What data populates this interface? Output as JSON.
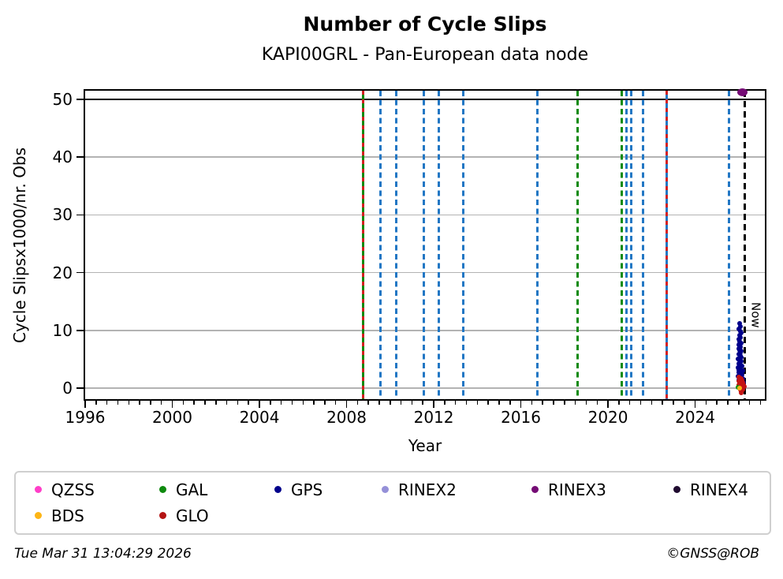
{
  "title": "Number of Cycle Slips",
  "subtitle": "KAPI00GRL - Pan-European data node",
  "footer": {
    "timestamp": "Tue Mar 31 13:04:29 2026",
    "credit": "©GNSS@ROB"
  },
  "legend": {
    "items": [
      {
        "label": "QZSS",
        "color": "#ff3ec8"
      },
      {
        "label": "GAL",
        "color": "#0e8a0e"
      },
      {
        "label": "GPS",
        "color": "#00008b"
      },
      {
        "label": "RINEX2",
        "color": "#9590d8"
      },
      {
        "label": "RINEX3",
        "color": "#750b75"
      },
      {
        "label": "RINEX4",
        "color": "#200b30"
      },
      {
        "label": "BDS",
        "color": "#fdb515"
      },
      {
        "label": "GLO",
        "color": "#b41414"
      }
    ]
  },
  "chart_data": {
    "type": "scatter",
    "title": "Number of Cycle Slips",
    "subtitle": "KAPI00GRL - Pan-European data node",
    "xlabel": "Year",
    "ylabel": "Cycle Slipsx1000/nr. Obs",
    "xlim": [
      1996,
      2027.2
    ],
    "ylim": [
      -1.9,
      51.5
    ],
    "x_major_ticks": [
      1996,
      2000,
      2004,
      2008,
      2012,
      2016,
      2020,
      2024
    ],
    "x_minor_tick_step": 0.5,
    "y_ticks": [
      0,
      10,
      20,
      30,
      40,
      50
    ],
    "y_gridlines": [
      0,
      10,
      20,
      30,
      40
    ],
    "grid": "horizontal",
    "gridline_color": "#b3b3b3",
    "clip_line": {
      "value": 50,
      "color": "#000000"
    },
    "now_line": {
      "year": 2026.27,
      "label": "Now",
      "color": "#000000",
      "style": "dashed"
    },
    "event_lines": [
      {
        "year": 2008.76,
        "color": "#0e8a0e",
        "style": "solid",
        "overlay_color": "#d42020"
      },
      {
        "year": 2009.55,
        "color": "#2277c4",
        "style": "dashed"
      },
      {
        "year": 2010.27,
        "color": "#2277c4",
        "style": "dashed"
      },
      {
        "year": 2011.53,
        "color": "#2277c4",
        "style": "dashed"
      },
      {
        "year": 2012.25,
        "color": "#2277c4",
        "style": "dashed"
      },
      {
        "year": 2013.37,
        "color": "#2277c4",
        "style": "dashed"
      },
      {
        "year": 2016.76,
        "color": "#2277c4",
        "style": "dashed"
      },
      {
        "year": 2018.6,
        "color": "#0e8a0e",
        "style": "dashed"
      },
      {
        "year": 2020.62,
        "color": "#0e8a0e",
        "style": "dashed"
      },
      {
        "year": 2020.83,
        "color": "#2277c4",
        "style": "dashed"
      },
      {
        "year": 2021.05,
        "color": "#2277c4",
        "style": "dashed"
      },
      {
        "year": 2021.62,
        "color": "#2277c4",
        "style": "dashed"
      },
      {
        "year": 2022.7,
        "color": "#2277c4",
        "style": "solid",
        "overlay_color": "#d42020"
      },
      {
        "year": 2025.55,
        "color": "#2277c4",
        "style": "dashed"
      }
    ],
    "series": [
      {
        "name": "GPS",
        "color": "#00008b",
        "marker": [
          6,
          6
        ],
        "points": [
          [
            2026.04,
            11.2
          ],
          [
            2026.08,
            10.7
          ],
          [
            2026.02,
            10.3
          ],
          [
            2026.06,
            9.9
          ],
          [
            2026.1,
            9.6
          ],
          [
            2026.03,
            9.2
          ],
          [
            2026.07,
            8.8
          ],
          [
            2026.0,
            8.5
          ],
          [
            2026.05,
            8.1
          ],
          [
            2026.1,
            7.8
          ],
          [
            2026.02,
            7.5
          ],
          [
            2026.07,
            7.1
          ],
          [
            2025.99,
            6.8
          ],
          [
            2026.04,
            6.5
          ],
          [
            2026.09,
            6.2
          ],
          [
            2026.13,
            6.4
          ],
          [
            2026.01,
            5.9
          ],
          [
            2026.06,
            5.6
          ],
          [
            2026.11,
            5.3
          ],
          [
            2025.98,
            5.1
          ],
          [
            2026.03,
            4.8
          ],
          [
            2026.08,
            4.5
          ],
          [
            2026.13,
            4.7
          ],
          [
            2026.0,
            4.2
          ],
          [
            2026.05,
            3.9
          ],
          [
            2026.1,
            3.7
          ],
          [
            2026.15,
            3.9
          ],
          [
            2025.97,
            3.5
          ],
          [
            2026.02,
            3.2
          ],
          [
            2026.07,
            3.0
          ],
          [
            2026.12,
            3.2
          ],
          [
            2026.17,
            3.0
          ],
          [
            2026.0,
            2.7
          ],
          [
            2026.05,
            2.5
          ],
          [
            2026.1,
            2.3
          ],
          [
            2026.15,
            2.4
          ],
          [
            2025.98,
            2.1
          ],
          [
            2026.03,
            1.9
          ],
          [
            2026.08,
            1.7
          ],
          [
            2026.13,
            1.8
          ],
          [
            2026.18,
            1.6
          ],
          [
            2026.01,
            1.4
          ],
          [
            2026.06,
            1.2
          ],
          [
            2026.11,
            1.0
          ],
          [
            2026.16,
            1.1
          ],
          [
            2026.21,
            0.9
          ],
          [
            2026.04,
            0.8
          ],
          [
            2026.09,
            0.6
          ],
          [
            2026.14,
            0.5
          ],
          [
            2026.19,
            0.4
          ],
          [
            2026.24,
            0.5
          ],
          [
            2026.07,
            0.3
          ],
          [
            2026.12,
            0.2
          ],
          [
            2026.17,
            0.1
          ],
          [
            2026.22,
            0.2
          ]
        ]
      },
      {
        "name": "GLO",
        "color": "#c41414",
        "marker": [
          6,
          6
        ],
        "points": [
          [
            2026.02,
            1.9
          ],
          [
            2026.07,
            1.6
          ],
          [
            2026.12,
            1.7
          ],
          [
            2026.0,
            1.3
          ],
          [
            2026.05,
            1.1
          ],
          [
            2026.1,
            1.2
          ],
          [
            2026.16,
            1.4
          ],
          [
            2026.03,
            0.9
          ],
          [
            2026.08,
            0.7
          ],
          [
            2026.14,
            0.8
          ],
          [
            2026.19,
            1.0
          ],
          [
            2026.01,
            0.5
          ],
          [
            2026.06,
            0.3
          ],
          [
            2026.11,
            0.4
          ],
          [
            2026.17,
            0.5
          ],
          [
            2026.22,
            0.6
          ],
          [
            2026.09,
            0.1
          ],
          [
            2026.15,
            0.0
          ],
          [
            2026.2,
            0.2
          ],
          [
            2026.25,
            0.3
          ],
          [
            2026.06,
            -0.3
          ],
          [
            2026.12,
            -0.5
          ],
          [
            2026.18,
            -0.2
          ],
          [
            2026.1,
            -0.8
          ]
        ]
      },
      {
        "name": "GAL",
        "color": "#0e8a0e",
        "marker": [
          6,
          6
        ],
        "points": [
          [
            2025.98,
            0.15
          ]
        ]
      },
      {
        "name": "BDS",
        "color": "#fdb515",
        "marker": [
          6,
          6
        ],
        "points": [
          [
            2026.04,
            0.05
          ]
        ]
      },
      {
        "name": "RINEX3",
        "color": "#750b75",
        "marker": [
          13,
          10
        ],
        "points": [
          [
            2026.16,
            51.2
          ]
        ]
      }
    ]
  }
}
